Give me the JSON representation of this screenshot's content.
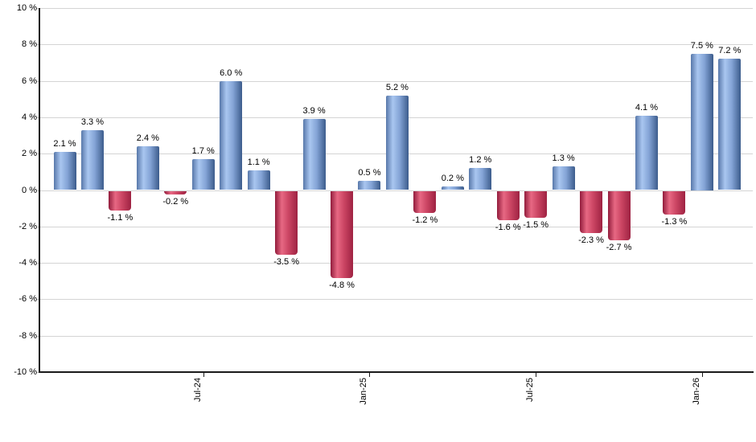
{
  "chart_data": {
    "type": "bar",
    "title": "",
    "xlabel": "",
    "ylabel": "",
    "ylim": [
      -10,
      10
    ],
    "grid": true,
    "legend": "none",
    "values": [
      2.1,
      3.3,
      -1.1,
      2.4,
      -0.2,
      1.7,
      6.0,
      1.1,
      -3.5,
      3.9,
      -4.8,
      0.5,
      5.2,
      -1.2,
      0.2,
      1.2,
      -1.6,
      -1.5,
      1.3,
      -2.3,
      -2.7,
      4.1,
      -1.3,
      7.5,
      7.2
    ],
    "bar_labels": [
      "2.1 %",
      "3.3 %",
      "-1.1 %",
      "2.4 %",
      "-0.2 %",
      "1.7 %",
      "6.0 %",
      "1.1 %",
      "-3.5 %",
      "3.9 %",
      "-4.8 %",
      "0.5 %",
      "5.2 %",
      "-1.2 %",
      "0.2 %",
      "1.2 %",
      "-1.6 %",
      "-1.5 %",
      "1.3 %",
      "-2.3 %",
      "-2.7 %",
      "4.1 %",
      "-1.3 %",
      "7.5 %",
      "7.2 %"
    ],
    "x_ticks": [
      {
        "label": "Jul-24",
        "index": 5
      },
      {
        "label": "Jan-25",
        "index": 11
      },
      {
        "label": "Jul-25",
        "index": 17
      },
      {
        "label": "Jan-26",
        "index": 23
      }
    ],
    "y_ticks": [
      {
        "label": "10 %",
        "value": 10
      },
      {
        "label": "8 %",
        "value": 8
      },
      {
        "label": "6 %",
        "value": 6
      },
      {
        "label": "4 %",
        "value": 4
      },
      {
        "label": "2 %",
        "value": 2
      },
      {
        "label": "0 %",
        "value": 0
      },
      {
        "label": "-2 %",
        "value": -2
      },
      {
        "label": "-4 %",
        "value": -4
      },
      {
        "label": "-6 %",
        "value": -6
      },
      {
        "label": "-8 %",
        "value": -8
      },
      {
        "label": "-10 %",
        "value": -10
      }
    ],
    "colors": {
      "positive_gradient": [
        "#5878aa",
        "#a9c6f0",
        "#84a4d6",
        "#3c5c8c"
      ],
      "negative_gradient": [
        "#921c3c",
        "#e76883",
        "#cb4563",
        "#9e2242"
      ],
      "gridline": "#d4d4d4",
      "axis": "#1a1a1a",
      "text": "#000000"
    }
  }
}
